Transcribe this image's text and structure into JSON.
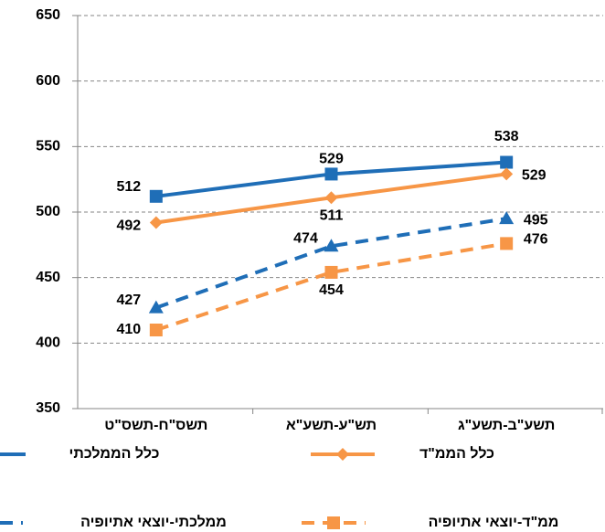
{
  "chart_data": {
    "type": "line",
    "categories": [
      "תשס\"ח-תשס\"ט",
      "תש\"ע-תשע\"א",
      "תשע\"ב-תשע\"ג"
    ],
    "series": [
      {
        "name": "כלל הממלכתי",
        "color": "#1f6eb7",
        "line_style": "solid",
        "marker": "square",
        "values": [
          512,
          529,
          538
        ]
      },
      {
        "name": "כלל הממ\"ד",
        "color": "#f79646",
        "line_style": "solid",
        "marker": "diamond",
        "values": [
          492,
          511,
          529
        ]
      },
      {
        "name": "ממלכתי-יוצאי אתיופיה",
        "color": "#1f6eb7",
        "line_style": "dashed",
        "marker": "triangle",
        "values": [
          427,
          474,
          495
        ]
      },
      {
        "name": "ממ\"ד-יוצאי אתיופיה",
        "color": "#f79646",
        "line_style": "dashed",
        "marker": "square",
        "values": [
          410,
          454,
          476
        ]
      }
    ],
    "ylim": [
      350,
      650
    ],
    "yticks": [
      350,
      400,
      450,
      500,
      550,
      600,
      650
    ],
    "grid": true
  }
}
